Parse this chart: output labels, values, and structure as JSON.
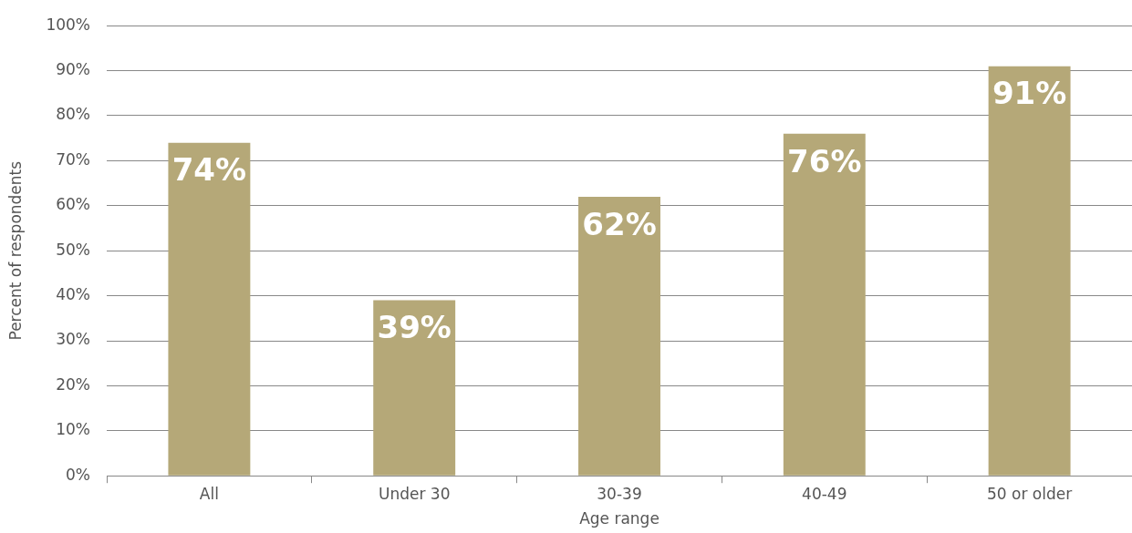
{
  "chart_data": {
    "type": "bar",
    "xlabel": "Age range",
    "ylabel": "Percent of respondents",
    "categories": [
      "All",
      "Under 30",
      "30-39",
      "40-49",
      "50 or older"
    ],
    "values": [
      74,
      39,
      62,
      76,
      91
    ],
    "value_labels": [
      "74%",
      "39%",
      "62%",
      "76%",
      "91%"
    ],
    "color": "#b5a878",
    "ylim": [
      0,
      100
    ],
    "yticks": [
      {
        "value": 0,
        "label": "0%"
      },
      {
        "value": 10,
        "label": "10%"
      },
      {
        "value": 20,
        "label": "20%"
      },
      {
        "value": 30,
        "label": "30%"
      },
      {
        "value": 40,
        "label": "40%"
      },
      {
        "value": 50,
        "label": "50%"
      },
      {
        "value": 60,
        "label": "60%"
      },
      {
        "value": 70,
        "label": "70%"
      },
      {
        "value": 80,
        "label": "80%"
      },
      {
        "value": 90,
        "label": "90%"
      },
      {
        "value": 100,
        "label": "100%"
      }
    ],
    "grid": "y",
    "legend": false
  }
}
